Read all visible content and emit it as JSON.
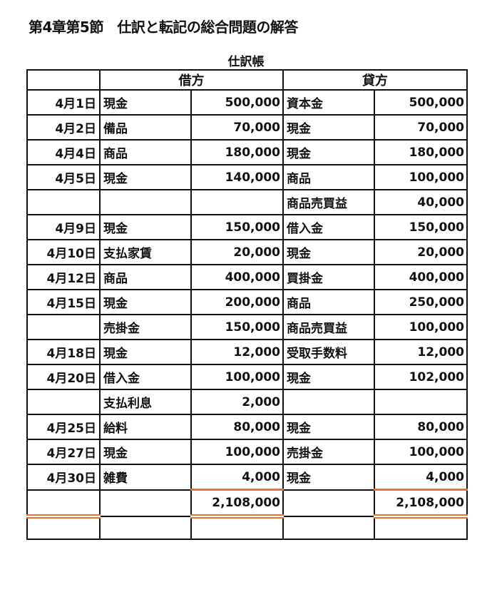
{
  "title": "第4章第5節　仕訳と転記の総合問題の解答",
  "caption": "仕訳帳",
  "headers": {
    "debit": "借方",
    "credit": "貸方"
  },
  "rule_color": "#e8732e",
  "rows": [
    {
      "date": "4月1日",
      "debit_account": "現金",
      "debit_amount": "500,000",
      "credit_account": "資本金",
      "credit_amount": "500,000"
    },
    {
      "date": "4月2日",
      "debit_account": "備品",
      "debit_amount": "70,000",
      "credit_account": "現金",
      "credit_amount": "70,000"
    },
    {
      "date": "4月4日",
      "debit_account": "商品",
      "debit_amount": "180,000",
      "credit_account": "現金",
      "credit_amount": "180,000"
    },
    {
      "date": "4月5日",
      "debit_account": "現金",
      "debit_amount": "140,000",
      "credit_account": "商品",
      "credit_amount": "100,000"
    },
    {
      "date": "",
      "debit_account": "",
      "debit_amount": "",
      "credit_account": "商品売買益",
      "credit_amount": "40,000"
    },
    {
      "date": "4月9日",
      "debit_account": "現金",
      "debit_amount": "150,000",
      "credit_account": "借入金",
      "credit_amount": "150,000"
    },
    {
      "date": "4月10日",
      "debit_account": "支払家賃",
      "debit_amount": "20,000",
      "credit_account": "現金",
      "credit_amount": "20,000"
    },
    {
      "date": "4月12日",
      "debit_account": "商品",
      "debit_amount": "400,000",
      "credit_account": "買掛金",
      "credit_amount": "400,000"
    },
    {
      "date": "4月15日",
      "debit_account": "現金",
      "debit_amount": "200,000",
      "credit_account": "商品",
      "credit_amount": "250,000"
    },
    {
      "date": "",
      "debit_account": "売掛金",
      "debit_amount": "150,000",
      "credit_account": "商品売買益",
      "credit_amount": "100,000"
    },
    {
      "date": "4月18日",
      "debit_account": "現金",
      "debit_amount": "12,000",
      "credit_account": "受取手数料",
      "credit_amount": "12,000"
    },
    {
      "date": "4月20日",
      "debit_account": "借入金",
      "debit_amount": "100,000",
      "credit_account": "現金",
      "credit_amount": "102,000"
    },
    {
      "date": "",
      "debit_account": "支払利息",
      "debit_amount": "2,000",
      "credit_account": "",
      "credit_amount": ""
    },
    {
      "date": "4月25日",
      "debit_account": "給料",
      "debit_amount": "80,000",
      "credit_account": "現金",
      "credit_amount": "80,000"
    },
    {
      "date": "4月27日",
      "debit_account": "現金",
      "debit_amount": "100,000",
      "credit_account": "売掛金",
      "credit_amount": "100,000"
    },
    {
      "date": "4月30日",
      "debit_account": "雑費",
      "debit_amount": "4,000",
      "credit_account": "現金",
      "credit_amount": "4,000"
    }
  ],
  "totals": {
    "debit": "2,108,000",
    "credit": "2,108,000"
  }
}
